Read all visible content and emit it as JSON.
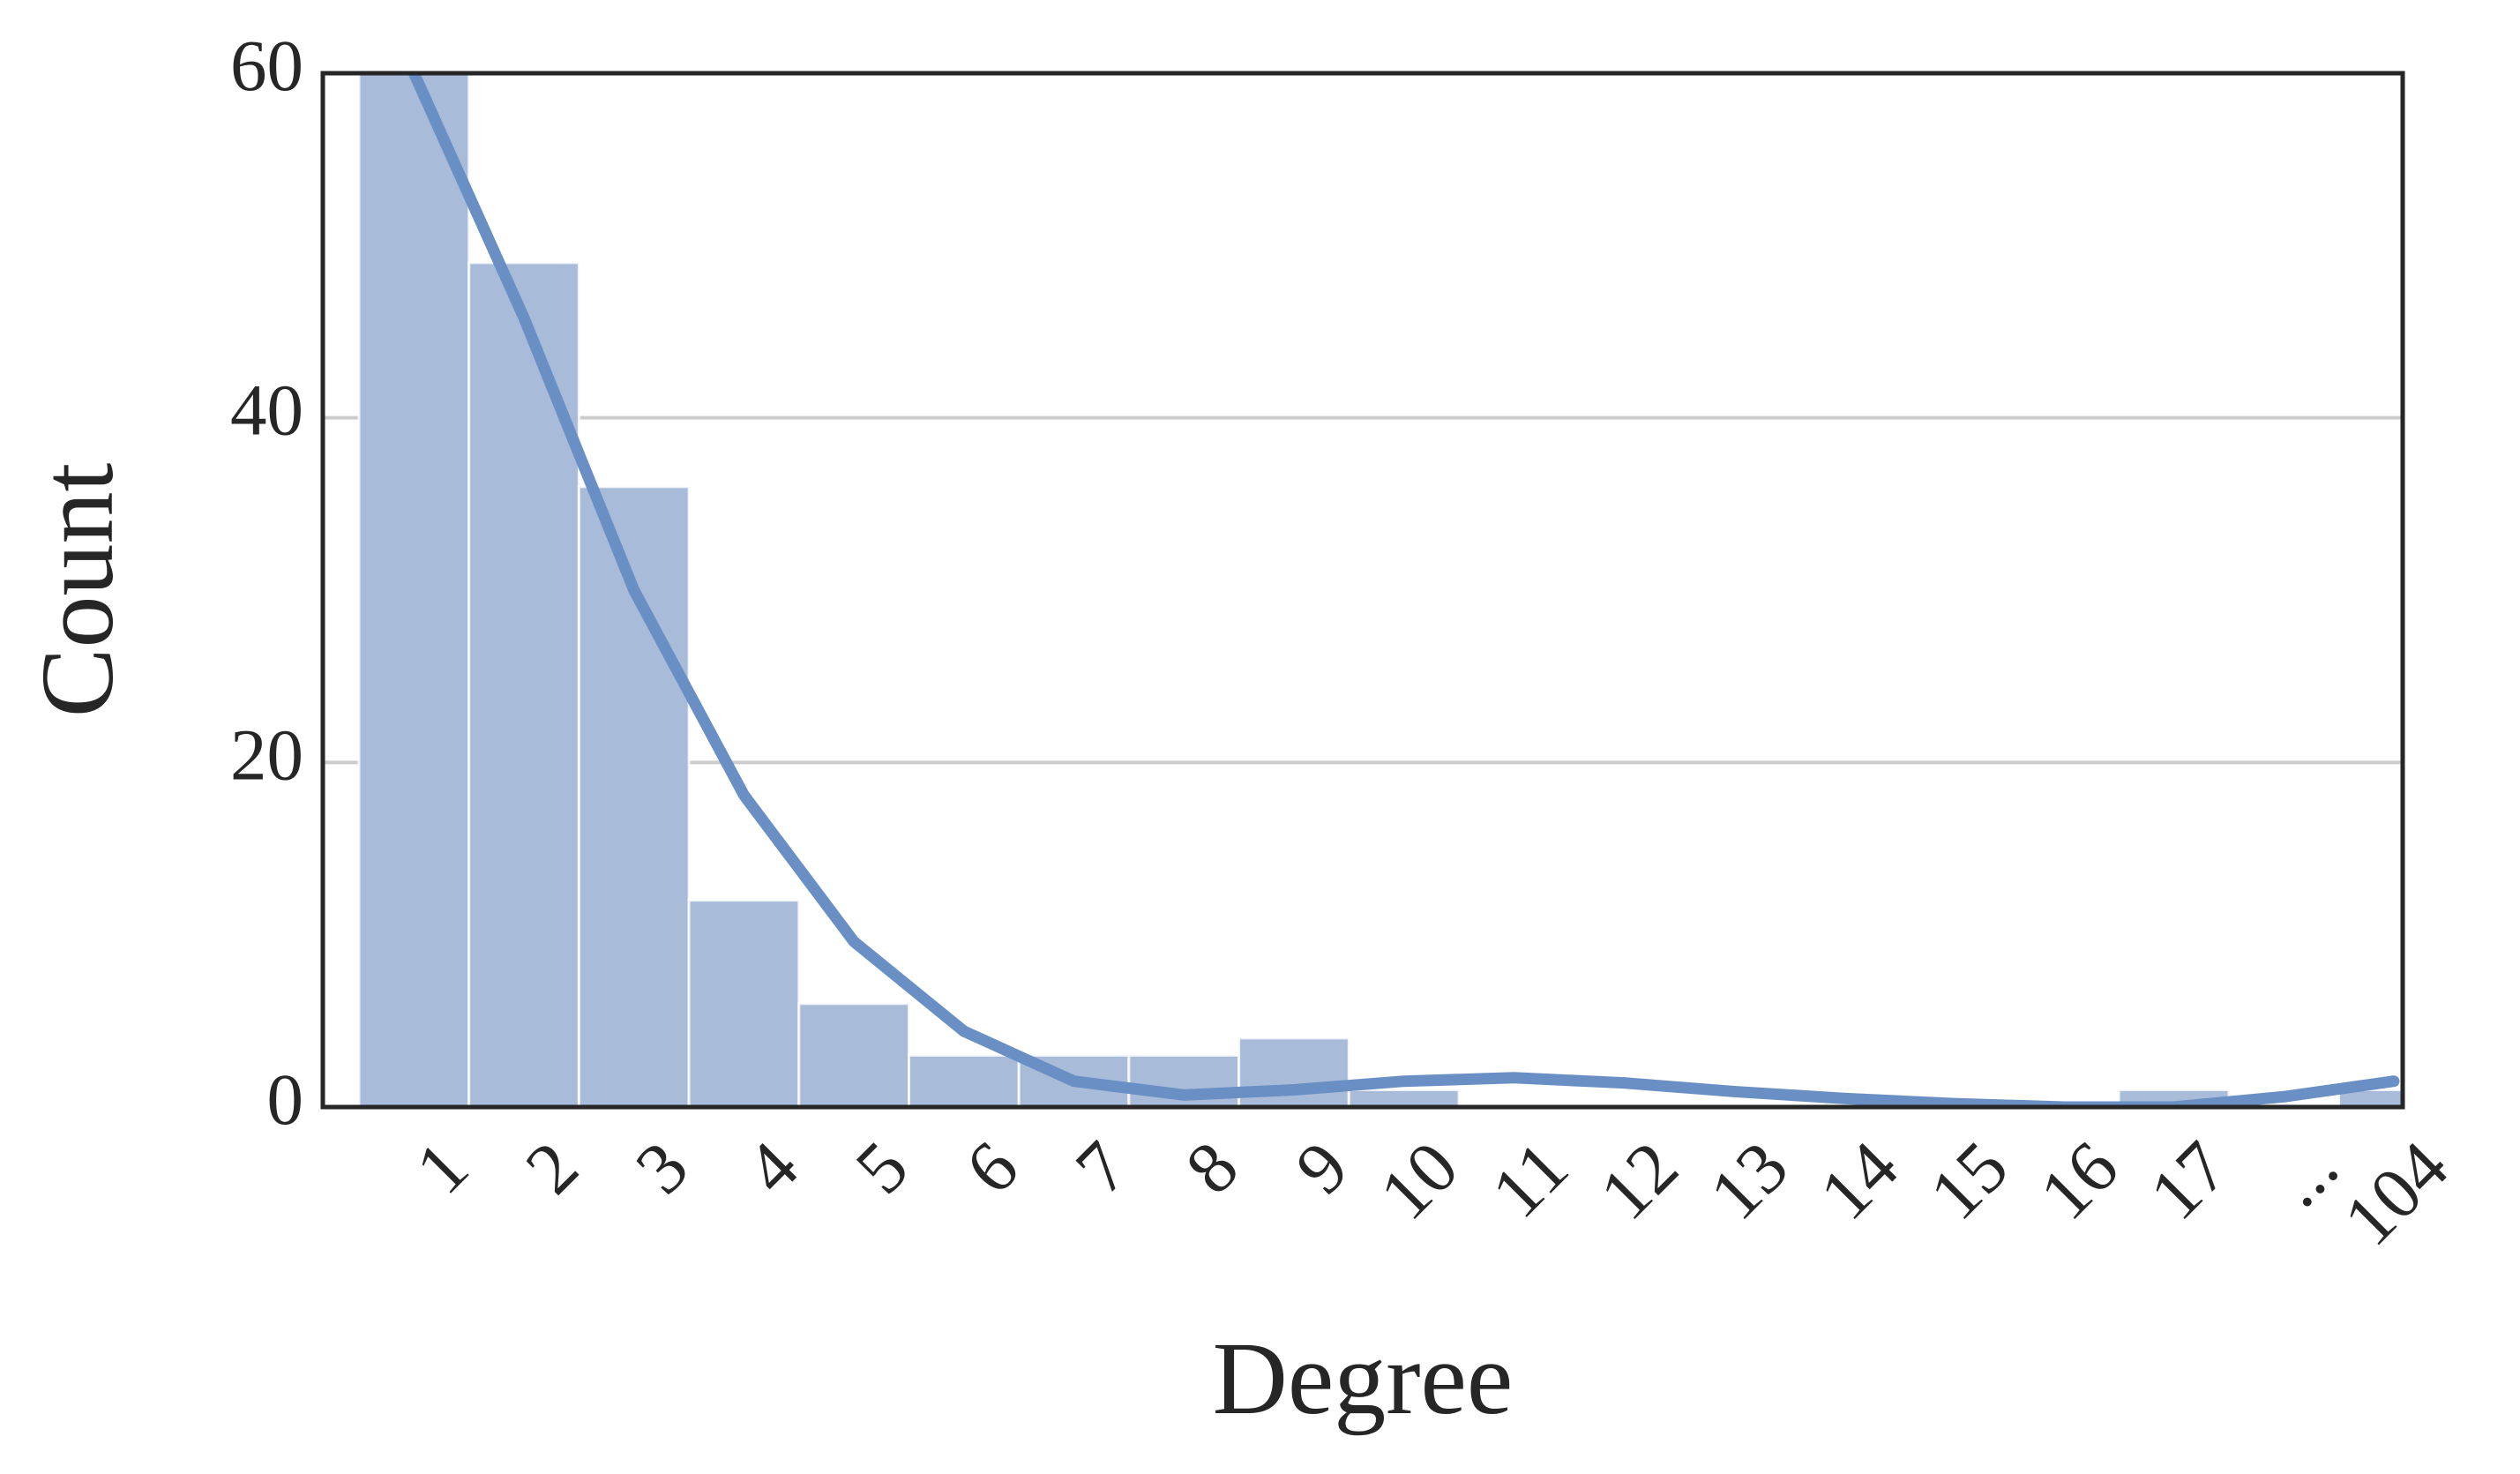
{
  "chart_data": {
    "type": "bar",
    "xlabel": "Degree",
    "ylabel": "Count",
    "categories": [
      "1",
      "2",
      "3",
      "4",
      "5",
      "6",
      "7",
      "8",
      "9",
      "10",
      "11",
      "12",
      "13",
      "14",
      "15",
      "16",
      "17",
      "...",
      "104"
    ],
    "values": [
      60,
      49,
      36,
      12,
      6,
      3,
      3,
      3,
      4,
      1,
      0,
      0,
      0,
      0,
      0,
      0,
      1,
      0,
      1
    ],
    "color": "#a8bbd9",
    "line_values": [
      60,
      45.8,
      30.0,
      18.1,
      9.6,
      4.4,
      1.5,
      0.7,
      1.0,
      1.5,
      1.7,
      1.4,
      0.9,
      0.5,
      0.2,
      0,
      0,
      0.6,
      1.5
    ],
    "line_color": "#6a8fc4",
    "ylim": [
      0,
      60
    ],
    "yticks": [
      0,
      20,
      40,
      60
    ],
    "grid": true
  }
}
